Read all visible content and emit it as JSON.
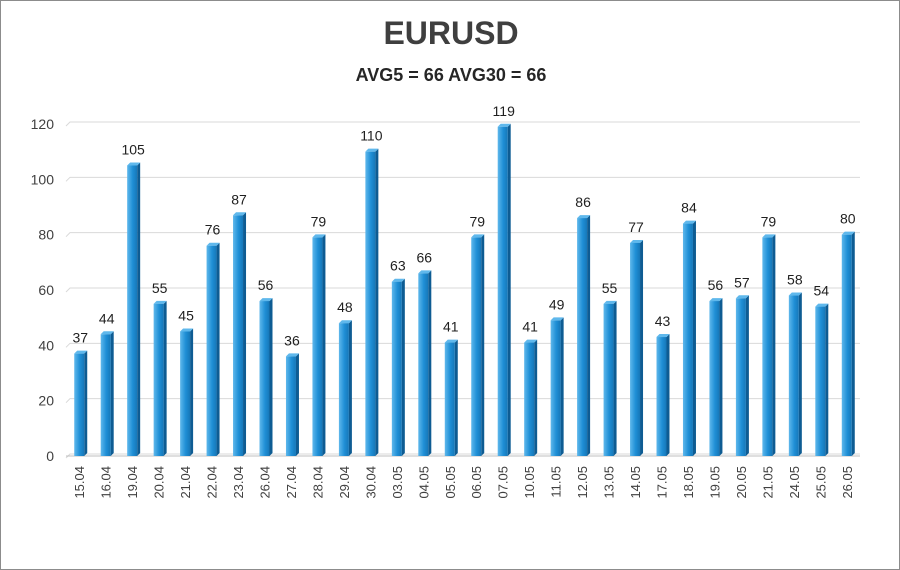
{
  "chart_data": {
    "type": "bar",
    "title": "EURUSD",
    "subtitle": "AVG5 = 66 AVG30 = 66",
    "categories": [
      "15.04",
      "16.04",
      "19.04",
      "20.04",
      "21.04",
      "22.04",
      "23.04",
      "26.04",
      "27.04",
      "28.04",
      "29.04",
      "30.04",
      "03.05",
      "04.05",
      "05.05",
      "06.05",
      "07.05",
      "10.05",
      "11.05",
      "12.05",
      "13.05",
      "14.05",
      "17.05",
      "18.05",
      "19.05",
      "20.05",
      "21.05",
      "24.05",
      "25.05",
      "26.05"
    ],
    "values": [
      37,
      44,
      105,
      55,
      45,
      76,
      87,
      56,
      36,
      79,
      48,
      110,
      63,
      66,
      41,
      79,
      119,
      41,
      49,
      86,
      55,
      77,
      43,
      84,
      56,
      57,
      79,
      58,
      54,
      80
    ],
    "ylim": [
      0,
      120
    ],
    "yticks": [
      0,
      20,
      40,
      60,
      80,
      100,
      120
    ],
    "grid": true,
    "colors": {
      "bar": "#1f8fd6",
      "bar_light": "#5fb8ec",
      "bar_dark": "#0e5c93",
      "grid": "#d9d9d9"
    }
  }
}
